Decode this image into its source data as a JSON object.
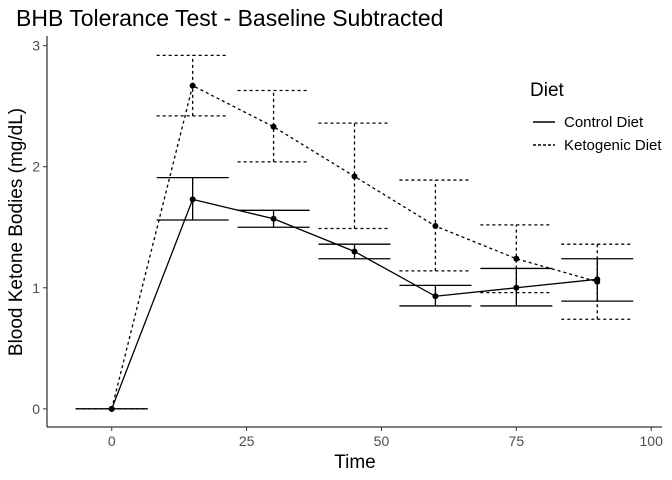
{
  "chart_data": {
    "type": "line",
    "title": "BHB Tolerance Test - Baseline Subtracted",
    "xlabel": "Time",
    "ylabel": "Blood Ketone Bodies (mg/dL)",
    "xlim": [
      -12,
      102
    ],
    "ylim": [
      -0.15,
      3.08
    ],
    "x_ticks": [
      0,
      25,
      50,
      75,
      100
    ],
    "y_ticks": [
      0,
      1,
      2,
      3
    ],
    "grid": false,
    "legend": {
      "title": "Diet",
      "position": "top-right"
    },
    "series": [
      {
        "name": "Control Diet",
        "linestyle": "solid",
        "color": "#000000",
        "points": [
          {
            "x": 0,
            "y": 0,
            "lower": 0,
            "upper": 0
          },
          {
            "x": 15,
            "y": 1.73,
            "lower": 1.56,
            "upper": 1.91
          },
          {
            "x": 30,
            "y": 1.57,
            "lower": 1.5,
            "upper": 1.64
          },
          {
            "x": 45,
            "y": 1.3,
            "lower": 1.24,
            "upper": 1.36
          },
          {
            "x": 60,
            "y": 0.93,
            "lower": 0.85,
            "upper": 1.02
          },
          {
            "x": 75,
            "y": 1.0,
            "lower": 0.85,
            "upper": 1.16
          },
          {
            "x": 90,
            "y": 1.07,
            "lower": 0.89,
            "upper": 1.24
          }
        ]
      },
      {
        "name": "Ketogenic Diet",
        "linestyle": "dotted",
        "color": "#000000",
        "points": [
          {
            "x": 0,
            "y": 0,
            "lower": 0,
            "upper": 0
          },
          {
            "x": 15,
            "y": 2.67,
            "lower": 2.42,
            "upper": 2.92
          },
          {
            "x": 30,
            "y": 2.33,
            "lower": 2.04,
            "upper": 2.63
          },
          {
            "x": 45,
            "y": 1.92,
            "lower": 1.49,
            "upper": 2.36
          },
          {
            "x": 60,
            "y": 1.51,
            "lower": 1.14,
            "upper": 1.89
          },
          {
            "x": 75,
            "y": 1.24,
            "lower": 0.96,
            "upper": 1.52
          },
          {
            "x": 90,
            "y": 1.05,
            "lower": 0.74,
            "upper": 1.36
          }
        ]
      }
    ]
  }
}
